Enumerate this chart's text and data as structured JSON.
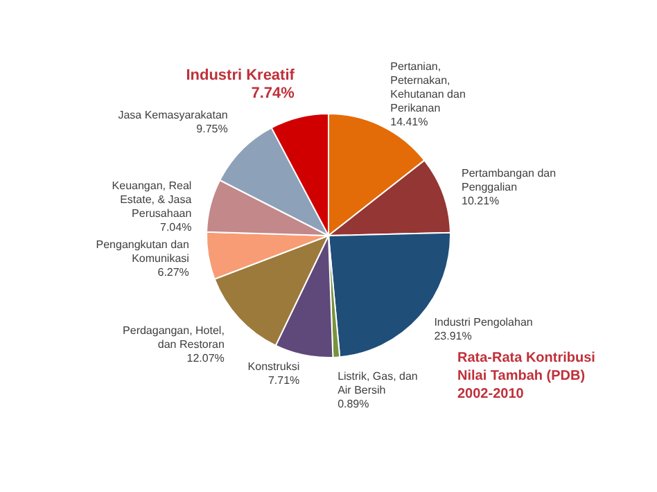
{
  "chart_data": {
    "type": "pie",
    "title": "Rata-Rata Kontribusi Nilai Tambah (PDB) 2002-2010",
    "categories": [
      "Pertanian, Peternakan, Kehutanan dan Perikanan",
      "Pertambangan dan Penggalian",
      "Industri Pengolahan",
      "Listrik, Gas, dan Air Bersih",
      "Konstruksi",
      "Perdagangan, Hotel, dan Restoran",
      "Pengangkutan dan Komunikasi",
      "Keuangan, Real Estate, & Jasa Perusahaan",
      "Jasa Kemasyarakatan",
      "Industri Kreatif"
    ],
    "values": [
      14.41,
      10.21,
      23.91,
      0.89,
      7.71,
      12.07,
      6.27,
      7.04,
      9.75,
      7.74
    ],
    "value_labels": [
      "14.41%",
      "10.21%",
      "23.91%",
      "0.89%",
      "7.71%",
      "12.07%",
      "6.27%",
      "7.04%",
      "9.75%",
      "7.74%"
    ],
    "colors": [
      "#e36c09",
      "#943634",
      "#1f4e79",
      "#77933c",
      "#5f497a",
      "#9c7a3c",
      "#f79c74",
      "#c3888a",
      "#8da1b9",
      "#d00000"
    ]
  }
}
